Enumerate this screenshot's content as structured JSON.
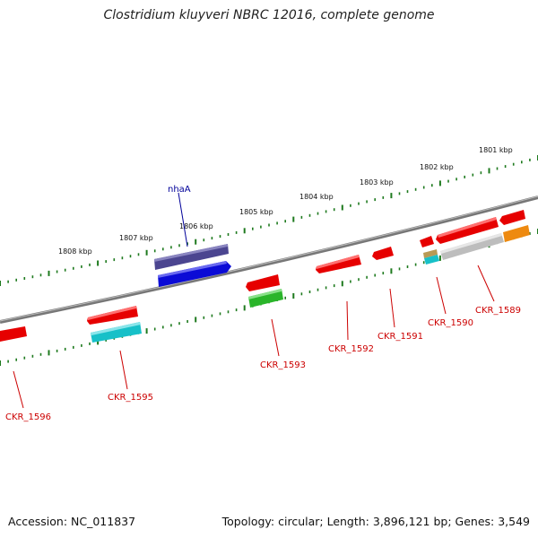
{
  "title": "Clostridium kluyveri NBRC 12016, complete genome",
  "accession": "Accession: NC_011837",
  "summary": "Topology: circular; Length: 3,896,121 bp; Genes: 3,549",
  "colors": {
    "backbone": "#777777",
    "tick": "#1e7a1e",
    "label_red": "#cc0000",
    "label_blue": "#000099",
    "red_gene": "#e60000",
    "cyan_gene": "#17c0c8",
    "green_gene": "#2ab52a",
    "blue_gene": "#0b0bd6",
    "navy_gene": "#4b4590",
    "grey_gene": "#bdbdbd",
    "orange_gene": "#ee8a10",
    "tan_gene": "#b89a55"
  },
  "ruler_labels": [
    "1808 kbp",
    "1807 kbp",
    "1806 kbp",
    "1805 kbp",
    "1804 kbp",
    "1803 kbp",
    "1802 kbp",
    "1801 kbp"
  ],
  "gene_labels": {
    "nhaA": "nhaA",
    "CKR_1596": "CKR_1596",
    "CKR_1595": "CKR_1595",
    "CKR_1593": "CKR_1593",
    "CKR_1592": "CKR_1592",
    "CKR_1591": "CKR_1591",
    "CKR_1590": "CKR_1590",
    "CKR_1589": "CKR_1589"
  }
}
